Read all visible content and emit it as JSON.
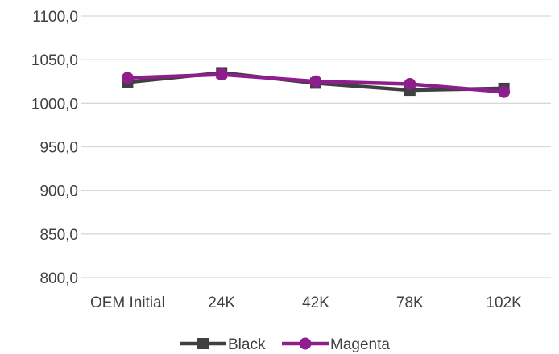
{
  "chart_data": {
    "type": "line",
    "categories": [
      "OEM Initial",
      "24K",
      "42K",
      "78K",
      "102K"
    ],
    "ylim": [
      800,
      1100
    ],
    "yticks": [
      800,
      850,
      900,
      950,
      1000,
      1050,
      1100
    ],
    "ytick_labels": [
      "800,0",
      "850,0",
      "900,0",
      "950,0",
      "1000,0",
      "1050,0",
      "1100,0"
    ],
    "grid": true,
    "legend": "bottom",
    "series": [
      {
        "name": "Black",
        "color": "#404040",
        "marker": "square",
        "values": [
          1024,
          1035,
          1023,
          1015,
          1017
        ]
      },
      {
        "name": "Magenta",
        "color": "#8e1d8e",
        "marker": "circle",
        "values": [
          1029,
          1033,
          1025,
          1022,
          1013
        ]
      }
    ]
  }
}
